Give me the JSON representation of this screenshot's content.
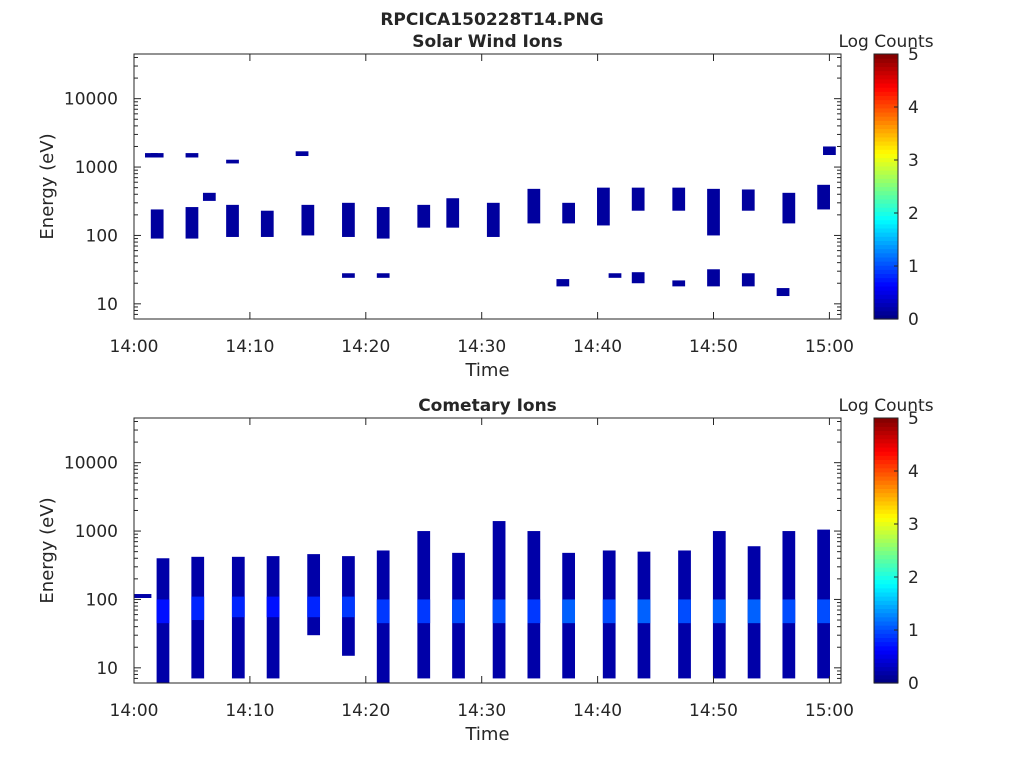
{
  "figure": {
    "title": "RPCICA150228T14.PNG"
  },
  "colors": {
    "colormap": [
      "#00007f",
      "#0000ff",
      "#007fff",
      "#00ffff",
      "#7fff7f",
      "#ffff00",
      "#ff7f00",
      "#ff0000",
      "#7f0000"
    ],
    "axes": "#262626",
    "background": "#ffffff"
  },
  "chart_data": [
    {
      "type": "heatmap",
      "title": "Solar Wind Ions",
      "xlabel": "Time",
      "ylabel": "Energy (eV)",
      "y_scale": "log",
      "ylim": [
        6,
        45000
      ],
      "xlim": [
        "14:00",
        "15:01"
      ],
      "x_ticks": [
        "14:00",
        "14:10",
        "14:20",
        "14:30",
        "14:40",
        "14:50",
        "15:00"
      ],
      "y_ticks": [
        "10",
        "100",
        "1000",
        "10000"
      ],
      "colorbar": {
        "label": "Log Counts",
        "range": [
          0,
          5
        ],
        "ticks": [
          "0",
          "1",
          "2",
          "3",
          "4",
          "5"
        ]
      },
      "grid": false,
      "cells": [
        {
          "t": "14:01.5",
          "e_lo": 1380,
          "e_hi": 1600,
          "log_counts": 0.15
        },
        {
          "t": "14:02.0",
          "e_lo": 1380,
          "e_hi": 1600,
          "log_counts": 0.15
        },
        {
          "t": "14:05.0",
          "e_lo": 1380,
          "e_hi": 1600,
          "log_counts": 0.15
        },
        {
          "t": "14:08.5",
          "e_lo": 1130,
          "e_hi": 1280,
          "log_counts": 0.15
        },
        {
          "t": "14:14.5",
          "e_lo": 1450,
          "e_hi": 1700,
          "log_counts": 0.15
        },
        {
          "t": "14:02.0",
          "e_lo": 90,
          "e_hi": 240,
          "log_counts": 0.15
        },
        {
          "t": "14:05.0",
          "e_lo": 90,
          "e_hi": 260,
          "log_counts": 0.15
        },
        {
          "t": "14:08.5",
          "e_lo": 95,
          "e_hi": 280,
          "log_counts": 0.15
        },
        {
          "t": "14:06.5",
          "e_lo": 320,
          "e_hi": 420,
          "log_counts": 0.15
        },
        {
          "t": "14:11.5",
          "e_lo": 95,
          "e_hi": 230,
          "log_counts": 0.15
        },
        {
          "t": "14:15.0",
          "e_lo": 100,
          "e_hi": 280,
          "log_counts": 0.15
        },
        {
          "t": "14:18.5",
          "e_lo": 95,
          "e_hi": 300,
          "log_counts": 0.15
        },
        {
          "t": "14:21.5",
          "e_lo": 90,
          "e_hi": 260,
          "log_counts": 0.15
        },
        {
          "t": "14:25.0",
          "e_lo": 130,
          "e_hi": 280,
          "log_counts": 0.15
        },
        {
          "t": "14:27.5",
          "e_lo": 130,
          "e_hi": 350,
          "log_counts": 0.15
        },
        {
          "t": "14:31.0",
          "e_lo": 95,
          "e_hi": 300,
          "log_counts": 0.15
        },
        {
          "t": "14:34.5",
          "e_lo": 150,
          "e_hi": 480,
          "log_counts": 0.15
        },
        {
          "t": "14:37.5",
          "e_lo": 150,
          "e_hi": 300,
          "log_counts": 0.15
        },
        {
          "t": "14:40.5",
          "e_lo": 140,
          "e_hi": 500,
          "log_counts": 0.15
        },
        {
          "t": "14:43.5",
          "e_lo": 230,
          "e_hi": 500,
          "log_counts": 0.15
        },
        {
          "t": "14:47.0",
          "e_lo": 230,
          "e_hi": 500,
          "log_counts": 0.15
        },
        {
          "t": "14:50.0",
          "e_lo": 100,
          "e_hi": 480,
          "log_counts": 0.15
        },
        {
          "t": "14:53.0",
          "e_lo": 230,
          "e_hi": 470,
          "log_counts": 0.15
        },
        {
          "t": "14:56.5",
          "e_lo": 150,
          "e_hi": 420,
          "log_counts": 0.15
        },
        {
          "t": "14:59.5",
          "e_lo": 240,
          "e_hi": 550,
          "log_counts": 0.15
        },
        {
          "t": "15:00.0",
          "e_lo": 1500,
          "e_hi": 2000,
          "log_counts": 0.15
        },
        {
          "t": "14:18.5",
          "e_lo": 24,
          "e_hi": 28,
          "log_counts": 0.15
        },
        {
          "t": "14:21.5",
          "e_lo": 24,
          "e_hi": 28,
          "log_counts": 0.15
        },
        {
          "t": "14:37.0",
          "e_lo": 18,
          "e_hi": 23,
          "log_counts": 0.15
        },
        {
          "t": "14:41.5",
          "e_lo": 24,
          "e_hi": 28,
          "log_counts": 0.15
        },
        {
          "t": "14:43.5",
          "e_lo": 20,
          "e_hi": 29,
          "log_counts": 0.15
        },
        {
          "t": "14:47.0",
          "e_lo": 18,
          "e_hi": 22,
          "log_counts": 0.15
        },
        {
          "t": "14:50.0",
          "e_lo": 18,
          "e_hi": 32,
          "log_counts": 0.15
        },
        {
          "t": "14:53.0",
          "e_lo": 18,
          "e_hi": 28,
          "log_counts": 0.15
        },
        {
          "t": "14:56.0",
          "e_lo": 13,
          "e_hi": 17,
          "log_counts": 0.15
        }
      ]
    },
    {
      "type": "heatmap",
      "title": "Cometary Ions",
      "xlabel": "Time",
      "ylabel": "Energy (eV)",
      "y_scale": "log",
      "ylim": [
        6,
        45000
      ],
      "xlim": [
        "14:00",
        "15:01"
      ],
      "x_ticks": [
        "14:00",
        "14:10",
        "14:20",
        "14:30",
        "14:40",
        "14:50",
        "15:00"
      ],
      "y_ticks": [
        "10",
        "100",
        "1000",
        "10000"
      ],
      "colorbar": {
        "label": "Log Counts",
        "range": [
          0,
          5
        ],
        "ticks": [
          "0",
          "1",
          "2",
          "3",
          "4",
          "5"
        ]
      },
      "grid": false,
      "cells": [
        {
          "t": "14:00-14:01.5",
          "e_lo": 105,
          "e_hi": 120,
          "log_counts": 0.2
        },
        {
          "t": "14:02.5",
          "e_lo": 6,
          "e_hi": 400,
          "log_counts": 0.2,
          "peak": {
            "e_lo": 45,
            "e_hi": 100,
            "log_counts": 0.7
          }
        },
        {
          "t": "14:05.5",
          "e_lo": 7,
          "e_hi": 420,
          "log_counts": 0.2,
          "peak": {
            "e_lo": 50,
            "e_hi": 110,
            "log_counts": 0.8
          }
        },
        {
          "t": "14:09.0",
          "e_lo": 7,
          "e_hi": 420,
          "log_counts": 0.2,
          "peak": {
            "e_lo": 55,
            "e_hi": 110,
            "log_counts": 0.8
          }
        },
        {
          "t": "14:12.0",
          "e_lo": 7,
          "e_hi": 430,
          "log_counts": 0.2,
          "peak": {
            "e_lo": 55,
            "e_hi": 110,
            "log_counts": 0.7
          }
        },
        {
          "t": "14:15.5",
          "e_lo": 30,
          "e_hi": 460,
          "log_counts": 0.2,
          "peak": {
            "e_lo": 55,
            "e_hi": 110,
            "log_counts": 0.8
          }
        },
        {
          "t": "14:18.5",
          "e_lo": 15,
          "e_hi": 430,
          "log_counts": 0.2,
          "peak": {
            "e_lo": 55,
            "e_hi": 110,
            "log_counts": 0.9
          }
        },
        {
          "t": "14:21.5",
          "e_lo": 6,
          "e_hi": 520,
          "log_counts": 0.2,
          "peak": {
            "e_lo": 45,
            "e_hi": 100,
            "log_counts": 0.9
          }
        },
        {
          "t": "14:25.0",
          "e_lo": 7,
          "e_hi": 1000,
          "log_counts": 0.2,
          "peak": {
            "e_lo": 45,
            "e_hi": 100,
            "log_counts": 0.9
          }
        },
        {
          "t": "14:28.0",
          "e_lo": 7,
          "e_hi": 480,
          "log_counts": 0.2,
          "peak": {
            "e_lo": 45,
            "e_hi": 100,
            "log_counts": 1.0
          }
        },
        {
          "t": "14:31.5",
          "e_lo": 7,
          "e_hi": 1400,
          "log_counts": 0.2,
          "peak": {
            "e_lo": 45,
            "e_hi": 100,
            "log_counts": 1.0
          }
        },
        {
          "t": "14:34.5",
          "e_lo": 7,
          "e_hi": 1000,
          "log_counts": 0.2,
          "peak": {
            "e_lo": 45,
            "e_hi": 100,
            "log_counts": 0.9
          }
        },
        {
          "t": "14:37.5",
          "e_lo": 7,
          "e_hi": 480,
          "log_counts": 0.2,
          "peak": {
            "e_lo": 45,
            "e_hi": 100,
            "log_counts": 1.1
          }
        },
        {
          "t": "14:41.0",
          "e_lo": 7,
          "e_hi": 520,
          "log_counts": 0.2,
          "peak": {
            "e_lo": 45,
            "e_hi": 100,
            "log_counts": 1.0
          }
        },
        {
          "t": "14:44.0",
          "e_lo": 7,
          "e_hi": 500,
          "log_counts": 0.2,
          "peak": {
            "e_lo": 45,
            "e_hi": 100,
            "log_counts": 1.1
          }
        },
        {
          "t": "14:47.5",
          "e_lo": 7,
          "e_hi": 520,
          "log_counts": 0.2,
          "peak": {
            "e_lo": 45,
            "e_hi": 100,
            "log_counts": 1.0
          }
        },
        {
          "t": "14:50.5",
          "e_lo": 7,
          "e_hi": 1000,
          "log_counts": 0.2,
          "peak": {
            "e_lo": 45,
            "e_hi": 100,
            "log_counts": 1.1
          }
        },
        {
          "t": "14:53.5",
          "e_lo": 7,
          "e_hi": 600,
          "log_counts": 0.2,
          "peak": {
            "e_lo": 45,
            "e_hi": 100,
            "log_counts": 1.1
          }
        },
        {
          "t": "14:56.5",
          "e_lo": 7,
          "e_hi": 1000,
          "log_counts": 0.2,
          "peak": {
            "e_lo": 45,
            "e_hi": 100,
            "log_counts": 1.0
          }
        },
        {
          "t": "14:59.5",
          "e_lo": 7,
          "e_hi": 1050,
          "log_counts": 0.2,
          "peak": {
            "e_lo": 45,
            "e_hi": 100,
            "log_counts": 1.0
          }
        }
      ]
    }
  ]
}
